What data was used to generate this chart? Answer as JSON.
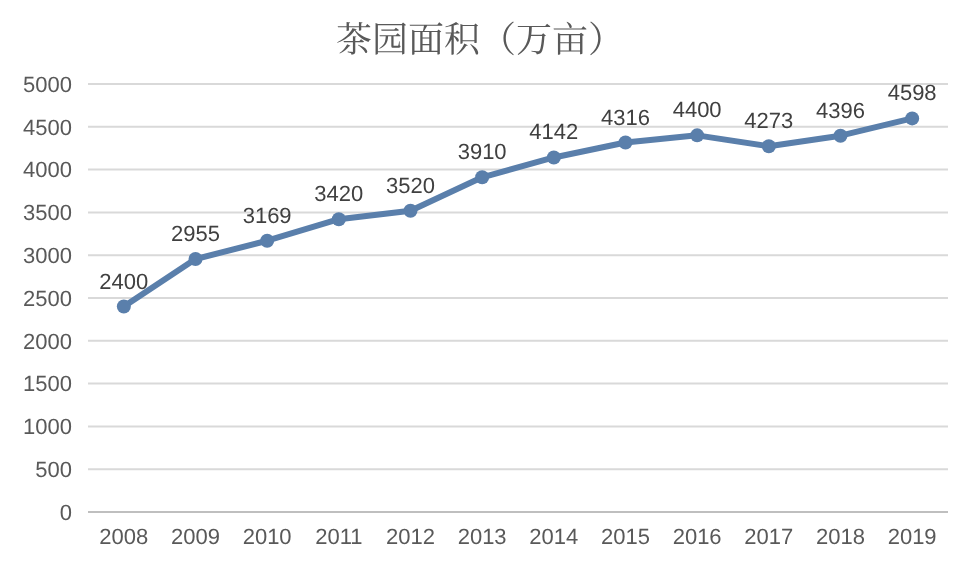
{
  "chart_data": {
    "type": "line",
    "title": "茶园面积（万亩）",
    "categories": [
      "2008",
      "2009",
      "2010",
      "2011",
      "2012",
      "2013",
      "2014",
      "2015",
      "2016",
      "2017",
      "2018",
      "2019"
    ],
    "series": [
      {
        "color": "#5a7fab",
        "values": [
          2400,
          2955,
          3169,
          3420,
          3520,
          3910,
          4142,
          4316,
          4400,
          4273,
          4396,
          4598
        ]
      }
    ],
    "ylim": [
      0,
      5000
    ],
    "yticks": [
      0,
      500,
      1000,
      1500,
      2000,
      2500,
      3000,
      3500,
      4000,
      4500,
      5000
    ],
    "grid": "y",
    "marker": "circle",
    "line_style": "solid",
    "data_labels": true
  }
}
